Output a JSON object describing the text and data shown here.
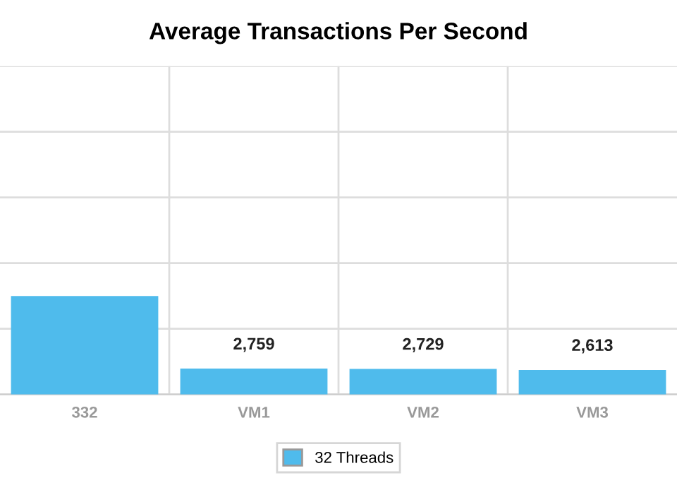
{
  "chart_data": {
    "type": "bar",
    "title": "Average Transactions Per Second",
    "categories": [
      "332",
      "VM1",
      "VM2",
      "VM3"
    ],
    "series": [
      {
        "name": "32 Threads",
        "color": "#4fbbec",
        "values": [
          10500,
          2759,
          2729,
          2613
        ],
        "value_labels": [
          null,
          "2,759",
          "2,729",
          "2,613"
        ]
      }
    ],
    "ylim": [
      0,
      35000
    ],
    "yticks": [
      {
        "value": 0,
        "label": null
      },
      {
        "value": 7000,
        "label": null
      },
      {
        "value": 14000,
        "label": null
      },
      {
        "value": 21000,
        "label": null
      },
      {
        "value": 28000,
        "label": null
      },
      {
        "value": 35000,
        "label": null
      }
    ],
    "tick_labels": "x",
    "grid": true,
    "legend": "bottom"
  }
}
